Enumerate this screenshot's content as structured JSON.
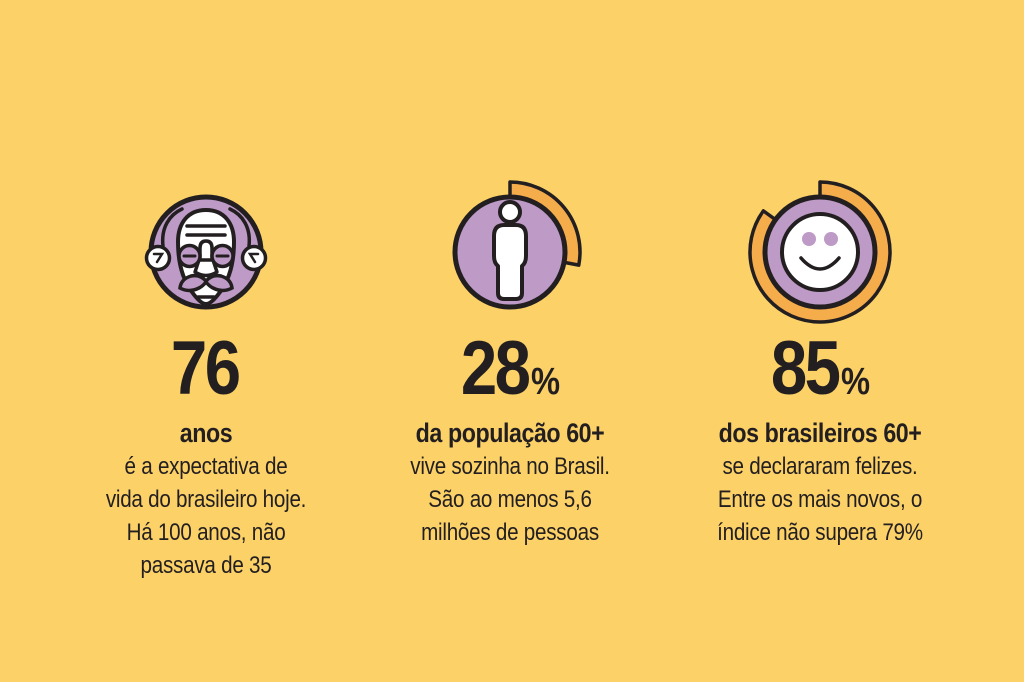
{
  "colors": {
    "background": "#FBD168",
    "purple": "#BE9AC6",
    "orange": "#F5AC4B",
    "ink": "#231F20"
  },
  "stats": [
    {
      "icon": "elderly-man-icon",
      "value": "76",
      "unit": "",
      "label": "anos",
      "description": "é a expectativa de\nvida do brasileiro hoje.\nHá 100 anos, não\npassava de 35",
      "arc_percent": 0
    },
    {
      "icon": "person-icon",
      "value": "28",
      "unit": "%",
      "label": "da população 60+",
      "description": "vive sozinha no Brasil.\nSão ao menos 5,6\nmilhões de pessoas",
      "arc_percent": 28
    },
    {
      "icon": "smiley-face-icon",
      "value": "85",
      "unit": "%",
      "label": "dos brasileiros 60+",
      "description": "se declararam felizes.\nEntre os mais novos, o\níndice não supera 79%",
      "arc_percent": 85
    }
  ],
  "chart_data": {
    "type": "pie",
    "title": "",
    "items": [
      {
        "label": "Expectativa de vida do brasileiro hoje (há 100 anos não passava de 35)",
        "value": 76,
        "unit": "anos",
        "ring_shown": false
      },
      {
        "label": "População 60+ que vive sozinha no Brasil (ao menos 5,6 milhões de pessoas)",
        "value": 28,
        "unit": "%",
        "ring_shown": true
      },
      {
        "label": "Brasileiros 60+ que se declararam felizes (entre os mais novos o índice não supera 79%)",
        "value": 85,
        "unit": "%",
        "ring_shown": true
      }
    ],
    "legend_position": "none",
    "notes": "Partial donut arcs around icons 2 and 3 encode 28% and 85% starting at 12 o'clock, clockwise"
  }
}
